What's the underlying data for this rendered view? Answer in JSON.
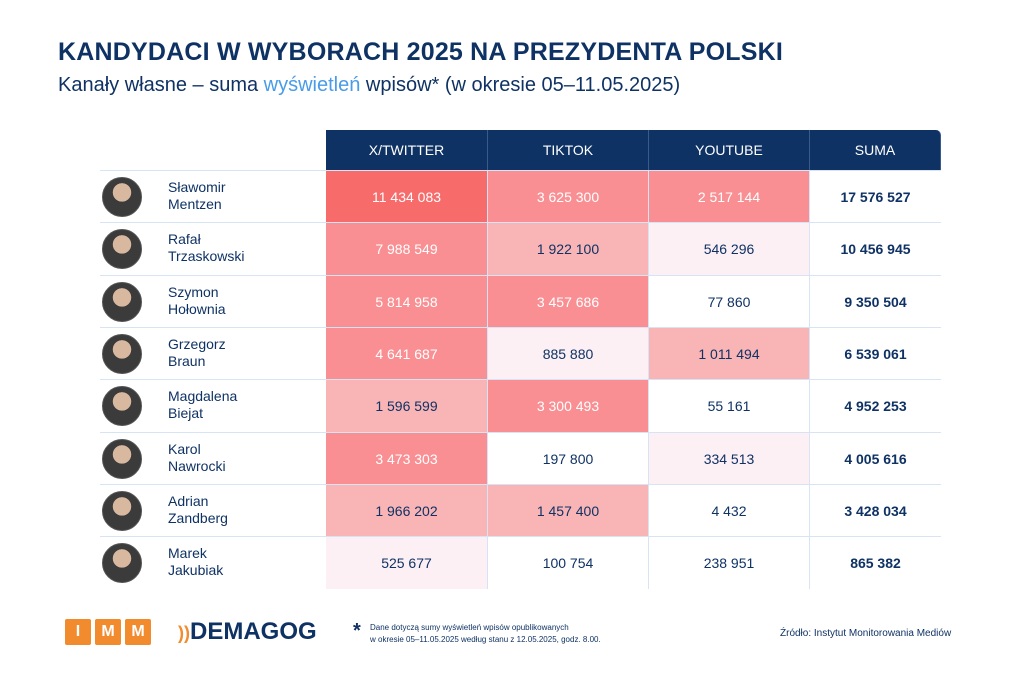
{
  "title": "KANDYDACI W WYBORACH 2025 NA PREZYDENTA POLSKI",
  "subtitle": {
    "pre": "Kanały własne – suma ",
    "highlight": "wyświetleń",
    "post": " wpisów* (w okresie 05–11.05.2025)"
  },
  "chart_data": {
    "type": "table",
    "columns": [
      "X/TWITTER",
      "TIKTOK",
      "YOUTUBE",
      "SUMA"
    ],
    "rows": [
      {
        "name": [
          "Sławomir",
          "Mentzen"
        ],
        "values": [
          "11 434 083",
          "3 625 300",
          "2 517 144"
        ],
        "sum": "17 576 527",
        "shade": [
          4,
          3,
          3
        ]
      },
      {
        "name": [
          "Rafał",
          "Trzaskowski"
        ],
        "values": [
          "7 988 549",
          "1 922 100",
          "546 296"
        ],
        "sum": "10 456 945",
        "shade": [
          3,
          2,
          1
        ]
      },
      {
        "name": [
          "Szymon",
          "Hołownia"
        ],
        "values": [
          "5 814 958",
          "3 457 686",
          "77 860"
        ],
        "sum": "9 350 504",
        "shade": [
          3,
          3,
          0
        ]
      },
      {
        "name": [
          "Grzegorz",
          "Braun"
        ],
        "values": [
          "4 641 687",
          "885 880",
          "1 011 494"
        ],
        "sum": "6 539 061",
        "shade": [
          3,
          1,
          2
        ]
      },
      {
        "name": [
          "Magdalena",
          "Biejat"
        ],
        "values": [
          "1 596 599",
          "3 300 493",
          "55 161"
        ],
        "sum": "4 952 253",
        "shade": [
          2,
          3,
          0
        ]
      },
      {
        "name": [
          "Karol",
          "Nawrocki"
        ],
        "values": [
          "3 473 303",
          "197 800",
          "334 513"
        ],
        "sum": "4 005 616",
        "shade": [
          3,
          0,
          1
        ]
      },
      {
        "name": [
          "Adrian",
          "Zandberg"
        ],
        "values": [
          "1 966 202",
          "1 457 400",
          "4 432"
        ],
        "sum": "3 428 034",
        "shade": [
          2,
          2,
          0
        ]
      },
      {
        "name": [
          "Marek",
          "Jakubiak"
        ],
        "values": [
          "525 677",
          "100 754",
          "238 951"
        ],
        "sum": "865 382",
        "shade": [
          1,
          0,
          0
        ]
      }
    ],
    "shade_colors": [
      "#ffffff",
      "#fcf0f4",
      "#f9b4b6",
      "#f98f92",
      "#f76b6b"
    ],
    "header_color": "#0f3264"
  },
  "footer": {
    "imm_letters": [
      "I",
      "M",
      "M"
    ],
    "demagog": "DEMAGOG",
    "note_star": "*",
    "note_lines": [
      "Dane dotyczą sumy wyświetleń wpisów opublikowanych",
      "w okresie 05–11.05.2025 według stanu z 12.05.2025, godz. 8.00."
    ],
    "source": "Źródło: Instytut Monitorowania Mediów"
  }
}
